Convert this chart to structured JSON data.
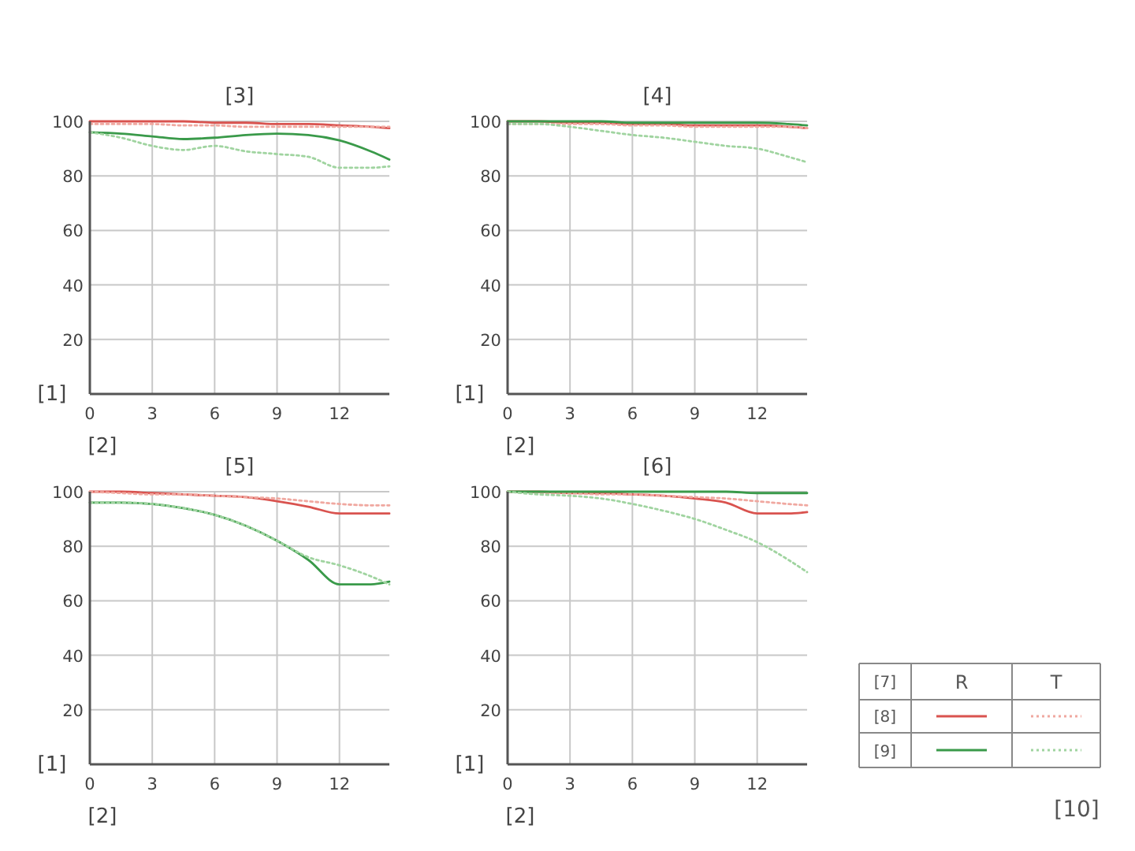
{
  "chart_data": [
    {
      "type": "line",
      "title": "[3]",
      "xlabel": "[2]",
      "ylabel": "[1]",
      "x": [
        0,
        1.5,
        3,
        4.5,
        6,
        7.5,
        9,
        10.5,
        12,
        13.5,
        14.4
      ],
      "xlim": [
        0,
        14.4
      ],
      "xticks": [
        0,
        3,
        6,
        9,
        12
      ],
      "ylim": [
        0,
        100
      ],
      "yticks": [
        20,
        40,
        60,
        80,
        100
      ],
      "grid": true,
      "series": [
        {
          "color": "#d9534f",
          "line_style": "solid",
          "values": [
            100,
            100,
            100,
            100,
            99.5,
            99.5,
            99,
            99,
            98.5,
            98,
            97.5
          ]
        },
        {
          "color": "#f0a8a0",
          "line_style": "dotted",
          "values": [
            99,
            99,
            99,
            98.5,
            98.5,
            98,
            98,
            98,
            98,
            98,
            98
          ]
        },
        {
          "color": "#3a9a4a",
          "line_style": "solid",
          "values": [
            96,
            95.5,
            94.5,
            93.5,
            94,
            95,
            95.5,
            95,
            93,
            89,
            86
          ]
        },
        {
          "color": "#a0d4a0",
          "line_style": "dotted",
          "values": [
            96,
            94,
            91,
            89.5,
            91,
            89,
            88,
            87,
            83,
            83,
            83.5
          ]
        }
      ]
    },
    {
      "type": "line",
      "title": "[4]",
      "xlabel": "[2]",
      "ylabel": "[1]",
      "x": [
        0,
        1.5,
        3,
        4.5,
        6,
        7.5,
        9,
        10.5,
        12,
        13.5,
        14.4
      ],
      "xlim": [
        0,
        14.4
      ],
      "xticks": [
        0,
        3,
        6,
        9,
        12
      ],
      "ylim": [
        0,
        100
      ],
      "yticks": [
        20,
        40,
        60,
        80,
        100
      ],
      "grid": true,
      "series": [
        {
          "color": "#d9534f",
          "line_style": "solid",
          "values": [
            100,
            100,
            99.5,
            99.5,
            99,
            99,
            98.5,
            98.5,
            98.5,
            98,
            97.5
          ]
        },
        {
          "color": "#f0a8a0",
          "line_style": "dotted",
          "values": [
            99,
            99,
            99,
            99,
            98.5,
            98.5,
            98,
            98,
            98,
            98,
            97.5
          ]
        },
        {
          "color": "#3a9a4a",
          "line_style": "solid",
          "values": [
            100,
            100,
            100,
            100,
            99.5,
            99.5,
            99.5,
            99.5,
            99.5,
            99,
            98.5
          ]
        },
        {
          "color": "#a0d4a0",
          "line_style": "dotted",
          "values": [
            99,
            99,
            98,
            96.5,
            95,
            94,
            92.5,
            91,
            90,
            87,
            85
          ]
        }
      ]
    },
    {
      "type": "line",
      "title": "[5]",
      "xlabel": "[2]",
      "ylabel": "[1]",
      "x": [
        0,
        1.5,
        3,
        4.5,
        6,
        7.5,
        9,
        10.5,
        12,
        13.5,
        14.4
      ],
      "xlim": [
        0,
        14.4
      ],
      "xticks": [
        0,
        3,
        6,
        9,
        12
      ],
      "ylim": [
        0,
        100
      ],
      "yticks": [
        20,
        40,
        60,
        80,
        100
      ],
      "grid": true,
      "series": [
        {
          "color": "#d9534f",
          "line_style": "solid",
          "values": [
            100,
            100,
            99.5,
            99,
            98.5,
            98,
            96.5,
            94.5,
            92,
            92,
            92
          ]
        },
        {
          "color": "#f0a8a0",
          "line_style": "dotted",
          "values": [
            100,
            99.5,
            99,
            99,
            98.5,
            98,
            97.5,
            96.5,
            95.5,
            95,
            95
          ]
        },
        {
          "color": "#3a9a4a",
          "line_style": "solid",
          "values": [
            96,
            96,
            95.5,
            94,
            91.5,
            87.5,
            82,
            75,
            66,
            66,
            67
          ]
        },
        {
          "color": "#a0d4a0",
          "line_style": "dotted",
          "values": [
            96,
            96,
            95.5,
            94,
            91.5,
            87.5,
            82,
            76,
            73,
            69,
            66
          ]
        }
      ]
    },
    {
      "type": "line",
      "title": "[6]",
      "xlabel": "[2]",
      "ylabel": "[1]",
      "x": [
        0,
        1.5,
        3,
        4.5,
        6,
        7.5,
        9,
        10.5,
        12,
        13.5,
        14.4
      ],
      "xlim": [
        0,
        14.4
      ],
      "xticks": [
        0,
        3,
        6,
        9,
        12
      ],
      "ylim": [
        0,
        100
      ],
      "yticks": [
        20,
        40,
        60,
        80,
        100
      ],
      "grid": true,
      "annotations": [
        "[7]",
        "R",
        "T",
        "[8]",
        "[9]",
        "[10]"
      ],
      "series": [
        {
          "color": "#d9534f",
          "line_style": "solid",
          "values": [
            100,
            100,
            99.5,
            99.5,
            99,
            98.5,
            97.5,
            96,
            92,
            92,
            92.5
          ]
        },
        {
          "color": "#f0a8a0",
          "line_style": "dotted",
          "values": [
            100,
            99.5,
            99.5,
            99,
            99,
            98.5,
            98,
            97.5,
            96.5,
            95.5,
            95
          ]
        },
        {
          "color": "#3a9a4a",
          "line_style": "solid",
          "values": [
            100,
            100,
            100,
            100,
            100,
            100,
            100,
            100,
            99.5,
            99.5,
            99.5
          ]
        },
        {
          "color": "#a0d4a0",
          "line_style": "dotted",
          "values": [
            100,
            99,
            98.5,
            97.5,
            95.5,
            93,
            90,
            86,
            81.5,
            75,
            70.5
          ]
        }
      ]
    }
  ]
}
